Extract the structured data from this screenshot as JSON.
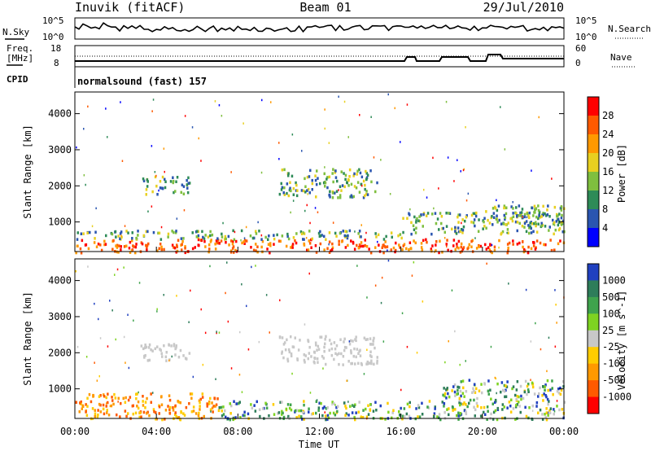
{
  "header": {
    "left_title": "Inuvik (fitACF)",
    "center_title": "Beam 01",
    "right_title": "29/Jul/2010"
  },
  "noise_panel": {
    "left_label": "N.Sky",
    "right_label": "N.Search",
    "left_ticks": [
      "10^5",
      "10^0"
    ],
    "right_ticks": [
      "10^5",
      "10^0"
    ]
  },
  "freq_panel": {
    "left_label_line1": "Freq.",
    "left_label_line2": "[MHz]",
    "right_label": "Nave",
    "left_ticks": [
      "18",
      "8"
    ],
    "right_ticks": [
      "60",
      "0"
    ]
  },
  "cpid_panel": {
    "label": "CPID",
    "program": "normalsound (fast) 157"
  },
  "colors": {
    "power_scale": [
      "#0000ff",
      "#2a55b0",
      "#2e8b57",
      "#7fbf3f",
      "#e8d020",
      "#ff9900",
      "#ff5a00",
      "#ff0000"
    ],
    "velocity_scale": [
      "#2040c0",
      "#2e7d5a",
      "#3fa34d",
      "#7ed321",
      "#c8c8c8",
      "#ffcc00",
      "#ff9900",
      "#ff5a00",
      "#ff0000"
    ]
  },
  "chart_data": [
    {
      "type": "heatmap",
      "title": "",
      "xlabel": "",
      "ylabel": "Slant Range [km]",
      "x_ticks": [
        "00:00",
        "04:00",
        "08:00",
        "12:00",
        "16:00",
        "20:00",
        "00:00"
      ],
      "y_ticks": [
        "1000",
        "2000",
        "3000",
        "4000"
      ],
      "xlim_hours": [
        0,
        24
      ],
      "ylim_km": [
        180,
        4600
      ],
      "colorbar": {
        "label": "Power [dB]",
        "ticks": [
          "4",
          "8",
          "12",
          "16",
          "20",
          "24",
          "28"
        ]
      },
      "regions": [
        {
          "t": [
            0,
            24
          ],
          "r": [
            180,
            550
          ],
          "level": "high"
        },
        {
          "t": [
            0,
            16
          ],
          "r": [
            550,
            800
          ],
          "level": "mid"
        },
        {
          "t": [
            3.2,
            5.6
          ],
          "r": [
            1800,
            2300
          ],
          "level": "mid"
        },
        {
          "t": [
            10,
            14.8
          ],
          "r": [
            1700,
            2500
          ],
          "level": "mid"
        },
        {
          "t": [
            16,
            24
          ],
          "r": [
            700,
            1300
          ],
          "level": "mid"
        },
        {
          "t": [
            20,
            24
          ],
          "r": [
            900,
            1500
          ],
          "level": "mid"
        }
      ]
    },
    {
      "type": "heatmap",
      "title": "",
      "xlabel": "Time UT",
      "ylabel": "Slant Range [km]",
      "x_ticks": [
        "00:00",
        "04:00",
        "08:00",
        "12:00",
        "16:00",
        "20:00",
        "00:00"
      ],
      "y_ticks": [
        "1000",
        "2000",
        "3000",
        "4000"
      ],
      "xlim_hours": [
        0,
        24
      ],
      "ylim_km": [
        180,
        4600
      ],
      "colorbar": {
        "label": "Velocity [m s^-1]",
        "ticks": [
          "1000",
          "500",
          "100",
          "25",
          "-25",
          "-100",
          "-500",
          "-1000"
        ]
      },
      "regions": [
        {
          "t": [
            0,
            7
          ],
          "r": [
            180,
            900
          ],
          "level": "negative"
        },
        {
          "t": [
            7,
            24
          ],
          "r": [
            180,
            700
          ],
          "level": "mixed"
        },
        {
          "t": [
            3.2,
            5.6
          ],
          "r": [
            1800,
            2300
          ],
          "level": "near-zero"
        },
        {
          "t": [
            10,
            14.8
          ],
          "r": [
            1700,
            2500
          ],
          "level": "near-zero"
        },
        {
          "t": [
            18,
            24
          ],
          "r": [
            700,
            1300
          ],
          "level": "mixed"
        }
      ]
    }
  ]
}
